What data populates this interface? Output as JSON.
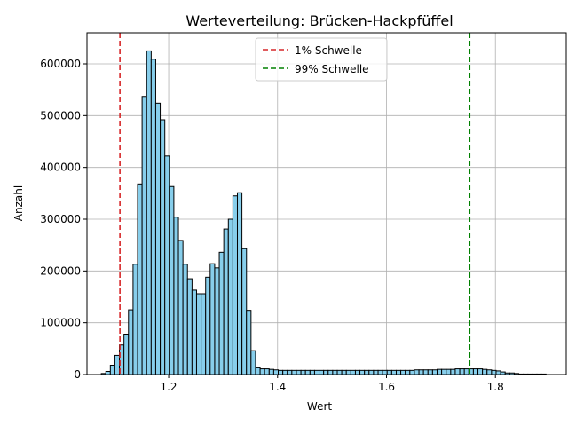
{
  "chart_data": {
    "type": "bar",
    "title": "Werteverteilung: Brücken-Hackpfüffel",
    "xlabel": "Wert",
    "ylabel": "Anzahl",
    "xlim": [
      1.05,
      1.93
    ],
    "ylim": [
      0,
      660000
    ],
    "grid": true,
    "legend_position": "top-center",
    "bar_color": "#87CEEB",
    "bar_edge_color": "#000000",
    "bin_width": 0.00833,
    "xticks": [
      {
        "value": 1.2,
        "label": "1.2"
      },
      {
        "value": 1.4,
        "label": "1.4"
      },
      {
        "value": 1.6,
        "label": "1.6"
      },
      {
        "value": 1.8,
        "label": "1.8"
      }
    ],
    "yticks": [
      {
        "value": 0,
        "label": "0"
      },
      {
        "value": 100000,
        "label": "100000"
      },
      {
        "value": 200000,
        "label": "200000"
      },
      {
        "value": 300000,
        "label": "300000"
      },
      {
        "value": 400000,
        "label": "400000"
      },
      {
        "value": 500000,
        "label": "500000"
      },
      {
        "value": 600000,
        "label": "600000"
      }
    ],
    "bins_start": [
      1.0763,
      1.0846,
      1.0929,
      1.1012,
      1.1096,
      1.1179,
      1.1262,
      1.1346,
      1.1429,
      1.1512,
      1.1596,
      1.1679,
      1.1762,
      1.1846,
      1.1929,
      1.2012,
      1.2096,
      1.2179,
      1.2262,
      1.2346,
      1.2429,
      1.2512,
      1.2596,
      1.2679,
      1.2762,
      1.2846,
      1.2929,
      1.3012,
      1.3096,
      1.3179,
      1.3262,
      1.3346,
      1.3429,
      1.3512,
      1.3596,
      1.3679,
      1.3762,
      1.3846,
      1.3929,
      1.4012,
      1.4096,
      1.4179,
      1.4262,
      1.4346,
      1.4429,
      1.4512,
      1.4596,
      1.4679,
      1.4762,
      1.4846,
      1.4929,
      1.5012,
      1.5096,
      1.5179,
      1.5262,
      1.5346,
      1.5429,
      1.5512,
      1.5596,
      1.5679,
      1.5762,
      1.5846,
      1.5929,
      1.6012,
      1.6096,
      1.6179,
      1.6262,
      1.6346,
      1.6429,
      1.6512,
      1.6596,
      1.6679,
      1.6762,
      1.6846,
      1.6929,
      1.7012,
      1.7096,
      1.7179,
      1.7262,
      1.7346,
      1.7429,
      1.7512,
      1.7596,
      1.7679,
      1.7762,
      1.7846,
      1.7929,
      1.8012,
      1.8096,
      1.8179,
      1.8262,
      1.8346,
      1.8429,
      1.8512,
      1.8596,
      1.8679,
      1.8762,
      1.8846
    ],
    "counts": [
      2000,
      6000,
      18000,
      37000,
      57000,
      78000,
      125000,
      213000,
      368000,
      537000,
      625000,
      609000,
      524000,
      492000,
      422000,
      363000,
      304000,
      259000,
      213000,
      185000,
      163000,
      156000,
      156000,
      188000,
      214000,
      206000,
      236000,
      281000,
      300000,
      345000,
      351000,
      243000,
      124000,
      46000,
      13000,
      11000,
      11000,
      10000,
      9000,
      8000,
      8000,
      8000,
      8000,
      8000,
      8000,
      8000,
      8000,
      8000,
      8000,
      8000,
      8000,
      8000,
      8000,
      8000,
      8000,
      8000,
      8000,
      8000,
      8000,
      8000,
      8000,
      8000,
      8000,
      8000,
      8000,
      8000,
      8000,
      8000,
      8000,
      9000,
      9000,
      9000,
      9000,
      9000,
      10000,
      10000,
      10000,
      10000,
      11000,
      11000,
      11000,
      11000,
      11000,
      11000,
      10000,
      9000,
      8000,
      7000,
      5000,
      3000,
      3000,
      2000,
      1000,
      1000,
      1000,
      1000,
      1000,
      1000
    ],
    "series": [
      {
        "name": "1% Schwelle",
        "type": "vline",
        "x": 1.1105,
        "color": "#d62728",
        "style": "dashed"
      },
      {
        "name": "99% Schwelle",
        "type": "vline",
        "x": 1.7528,
        "color": "#008000",
        "style": "dashed"
      }
    ]
  }
}
